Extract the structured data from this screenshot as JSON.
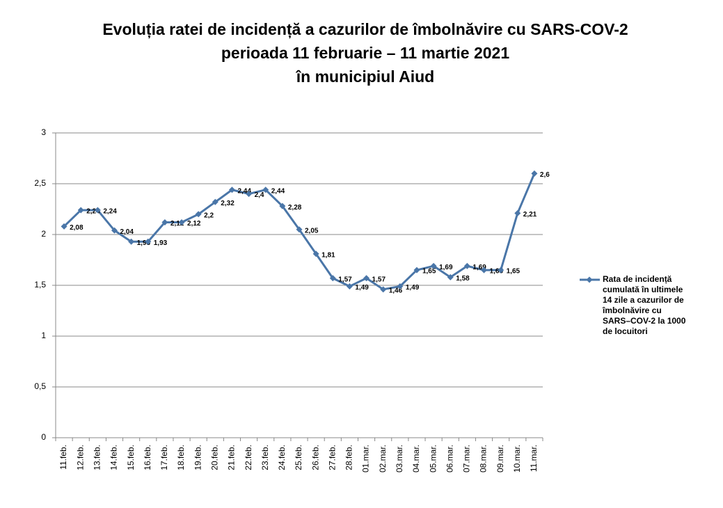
{
  "chart_data": {
    "type": "line",
    "title": [
      "Evoluția ratei de incidență a cazurilor de îmbolnăvire cu SARS-COV-2",
      "perioada 11 februarie – 11 martie 2021",
      "în municipiul Aiud"
    ],
    "categories": [
      "11.feb.",
      "12.feb.",
      "13.feb.",
      "14.feb.",
      "15.feb.",
      "16.feb.",
      "17.feb.",
      "18.feb.",
      "19.feb.",
      "20.feb.",
      "21.feb.",
      "22.feb.",
      "23.feb.",
      "24.feb.",
      "25.feb.",
      "26.feb.",
      "27.feb.",
      "28.feb.",
      "01.mar.",
      "02.mar.",
      "03.mar.",
      "04.mar.",
      "05.mar.",
      "06.mar.",
      "07.mar.",
      "08.mar.",
      "09.mar.",
      "10.mar.",
      "11.mar."
    ],
    "series": [
      {
        "name": "Rata de incidență cumulată în ultimele 14 zile a cazurilor de îmbolnăvire cu SARS–COV-2 la 1000 de locuitori",
        "color": "#4a76a8",
        "values": [
          2.08,
          2.24,
          2.24,
          2.04,
          1.93,
          1.93,
          2.12,
          2.12,
          2.2,
          2.32,
          2.44,
          2.4,
          2.44,
          2.28,
          2.05,
          1.81,
          1.57,
          1.49,
          1.57,
          1.46,
          1.49,
          1.65,
          1.69,
          1.58,
          1.69,
          1.65,
          1.65,
          2.21,
          2.6
        ],
        "value_labels": [
          "2,08",
          "2,24",
          "2,24",
          "2,04",
          "1,93",
          "1,93",
          "2,12",
          "2,12",
          "2,2",
          "2,32",
          "2,44",
          "2,4",
          "2,44",
          "2,28",
          "2,05",
          "1,81",
          "1,57",
          "1,49",
          "1,57",
          "1,46",
          "1,49",
          "1,65",
          "1,69",
          "1,58",
          "1,69",
          "1,65",
          "1,65",
          "2,21",
          "2,6"
        ]
      }
    ],
    "ylim": [
      0,
      3
    ],
    "yticks": [
      0,
      {
        "value": 0.5,
        "label": "0,5"
      },
      1,
      {
        "value": 1.5,
        "label": "1,5"
      },
      2,
      {
        "value": 2.5,
        "label": "2,5"
      },
      3
    ],
    "grid": true,
    "legend": "right"
  }
}
